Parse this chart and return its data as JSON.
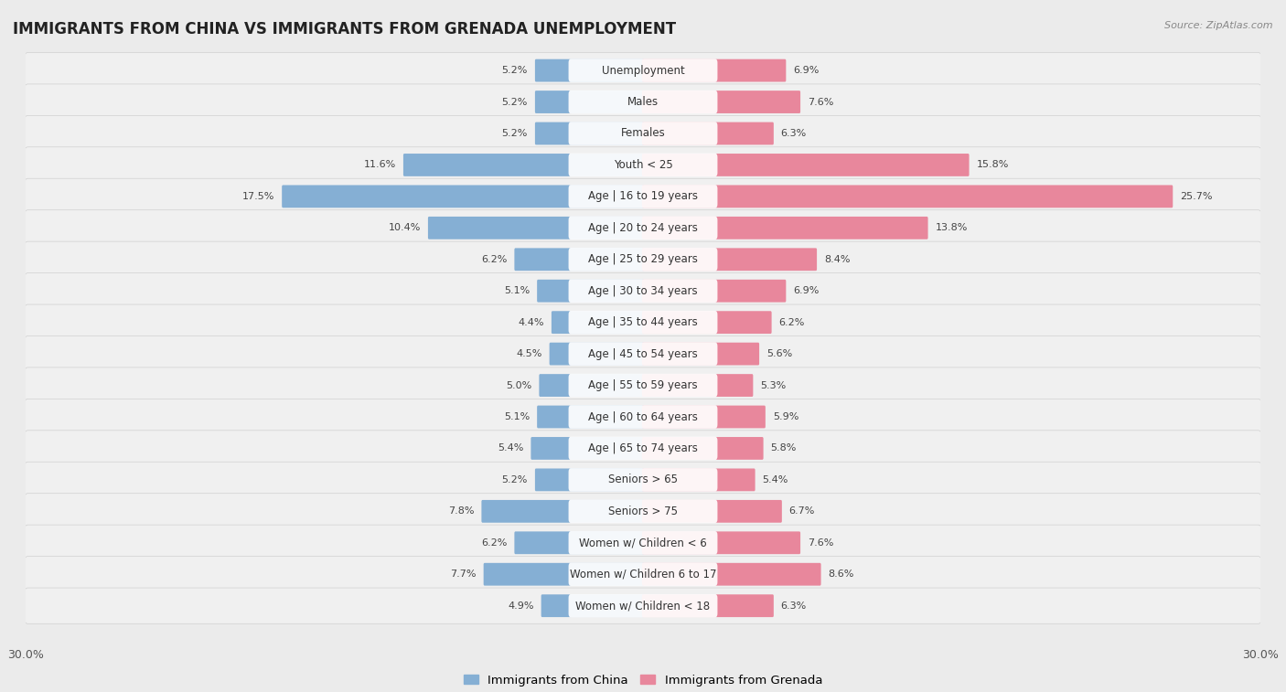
{
  "title": "IMMIGRANTS FROM CHINA VS IMMIGRANTS FROM GRENADA UNEMPLOYMENT",
  "source": "Source: ZipAtlas.com",
  "categories": [
    "Unemployment",
    "Males",
    "Females",
    "Youth < 25",
    "Age | 16 to 19 years",
    "Age | 20 to 24 years",
    "Age | 25 to 29 years",
    "Age | 30 to 34 years",
    "Age | 35 to 44 years",
    "Age | 45 to 54 years",
    "Age | 55 to 59 years",
    "Age | 60 to 64 years",
    "Age | 65 to 74 years",
    "Seniors > 65",
    "Seniors > 75",
    "Women w/ Children < 6",
    "Women w/ Children 6 to 17",
    "Women w/ Children < 18"
  ],
  "china_values": [
    5.2,
    5.2,
    5.2,
    11.6,
    17.5,
    10.4,
    6.2,
    5.1,
    4.4,
    4.5,
    5.0,
    5.1,
    5.4,
    5.2,
    7.8,
    6.2,
    7.7,
    4.9
  ],
  "grenada_values": [
    6.9,
    7.6,
    6.3,
    15.8,
    25.7,
    13.8,
    8.4,
    6.9,
    6.2,
    5.6,
    5.3,
    5.9,
    5.8,
    5.4,
    6.7,
    7.6,
    8.6,
    6.3
  ],
  "china_color": "#85afd4",
  "grenada_color": "#e8879c",
  "row_bg_color": "#e8e8e8",
  "row_light_color": "#f5f5f5",
  "background_color": "#ebebeb",
  "axis_max": 30.0,
  "legend_china": "Immigrants from China",
  "legend_grenada": "Immigrants from Grenada",
  "title_fontsize": 12,
  "label_fontsize": 8.5,
  "value_fontsize": 8.0
}
